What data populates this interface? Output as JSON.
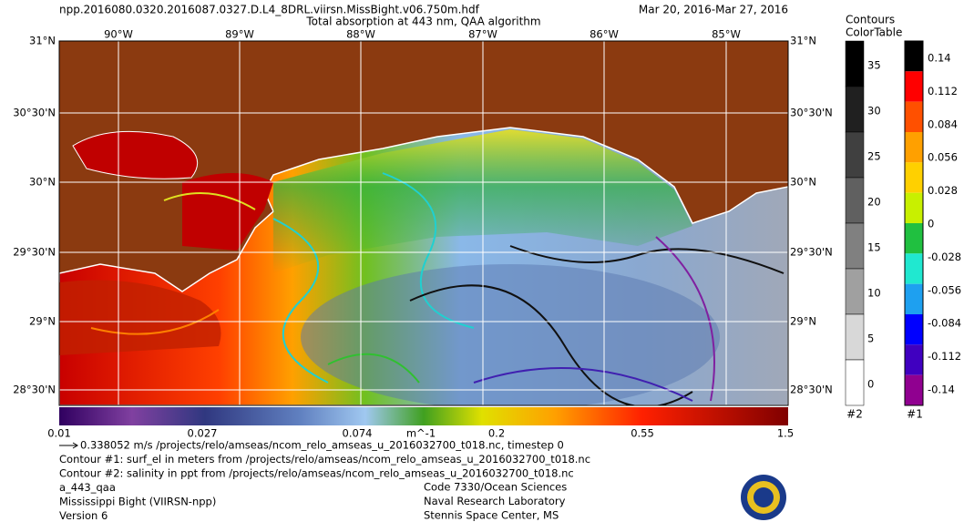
{
  "header": {
    "filename": "npp.2016080.0320.2016087.0327.D.L4_8DRL.viirsn.MissBight.v06.750m.hdf",
    "title": "Total absorption at 443 nm, QAA algorithm",
    "date_range": "Mar 20, 2016-Mar 27, 2016"
  },
  "map": {
    "lon_labels": [
      "90°W",
      "89°W",
      "88°W",
      "87°W",
      "86°W",
      "85°W"
    ],
    "lat_labels": [
      "31°N",
      "30°30'N",
      "30°N",
      "29°30'N",
      "29°N",
      "28°30'N"
    ]
  },
  "main_colorbar": {
    "labels": [
      "0.01",
      "0.027",
      "0.074",
      "0.2",
      "0.55",
      "1.5"
    ],
    "unit": "m^-1"
  },
  "contours_colorbar": {
    "title": "Contours",
    "labels": [
      "35",
      "30",
      "25",
      "20",
      "15",
      "10",
      "5",
      "0"
    ],
    "footer": "#2"
  },
  "colortable": {
    "title": "ColorTable",
    "labels": [
      "0.14",
      "0.112",
      "0.084",
      "0.056",
      "0.028",
      "0",
      "-0.028",
      "-0.056",
      "-0.084",
      "-0.112",
      "-0.14"
    ],
    "footer": "#1"
  },
  "footer": {
    "lines": [
      "0.338052 m/s /projects/relo/amseas/ncom_relo_amseas_u_2016032700_t018.nc, timestep 0",
      "Contour #1: surf_el in meters from /projects/relo/amseas/ncom_relo_amseas_u_2016032700_t018.nc",
      "Contour #2: salinity in ppt from /projects/relo/amseas/ncom_relo_amseas_u_2016032700_t018.nc",
      "a_443_qaa",
      "Mississippi Bight (VIIRSN-npp)",
      "Version 6"
    ],
    "right_lines": [
      "Code 7330/Ocean Sciences",
      "Naval Research Laboratory",
      "Stennis Space Center, MS"
    ]
  }
}
